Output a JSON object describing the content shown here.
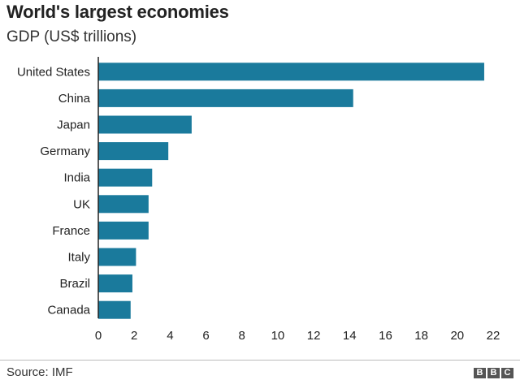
{
  "title": "World's largest economies",
  "subtitle": "GDP (US$ trillions)",
  "source": "Source: IMF",
  "logo": [
    "B",
    "B",
    "C"
  ],
  "colors": {
    "bar": "#1a7a9c",
    "axis": "#222222",
    "text": "#222222"
  },
  "chart_data": {
    "type": "bar",
    "orientation": "horizontal",
    "title": "World's largest economies",
    "subtitle": "GDP (US$ trillions)",
    "categories": [
      "United States",
      "China",
      "Japan",
      "Germany",
      "India",
      "UK",
      "France",
      "Italy",
      "Brazil",
      "Canada"
    ],
    "values": [
      21.5,
      14.2,
      5.2,
      3.9,
      3.0,
      2.8,
      2.8,
      2.1,
      1.9,
      1.8
    ],
    "xlim": [
      0,
      22
    ],
    "xticks": [
      0,
      2,
      4,
      6,
      8,
      10,
      12,
      14,
      16,
      18,
      20,
      22
    ],
    "xlabel": "",
    "ylabel": "",
    "grid": false
  }
}
